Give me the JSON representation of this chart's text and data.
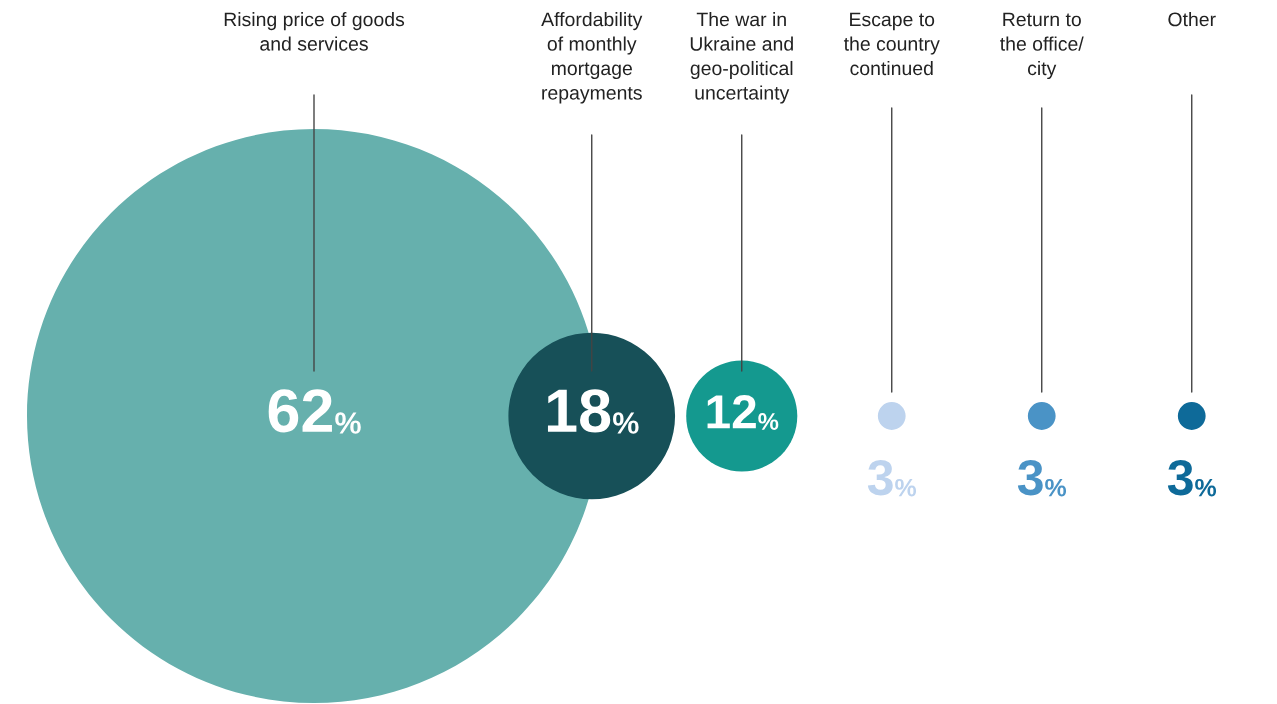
{
  "chart_data": {
    "type": "other",
    "categories": [
      "Rising price of goods\nand services",
      "Affordability\nof monthly\nmortgage\nrepayments",
      "The war in\nUkraine and\ngeo-political\nuncertainty",
      "Escape to\nthe country\ncontinued",
      "Return to\nthe office/\ncity",
      "Other"
    ],
    "values": [
      62,
      18,
      12,
      3,
      3,
      3
    ],
    "value_labels": [
      "62%",
      "18%",
      "12%",
      "3%",
      "3%",
      "3%"
    ],
    "colors": [
      "#66b0ad",
      "#175058",
      "#14998f",
      "#bdd3ee",
      "#4a93c6",
      "#0e6a99"
    ]
  }
}
